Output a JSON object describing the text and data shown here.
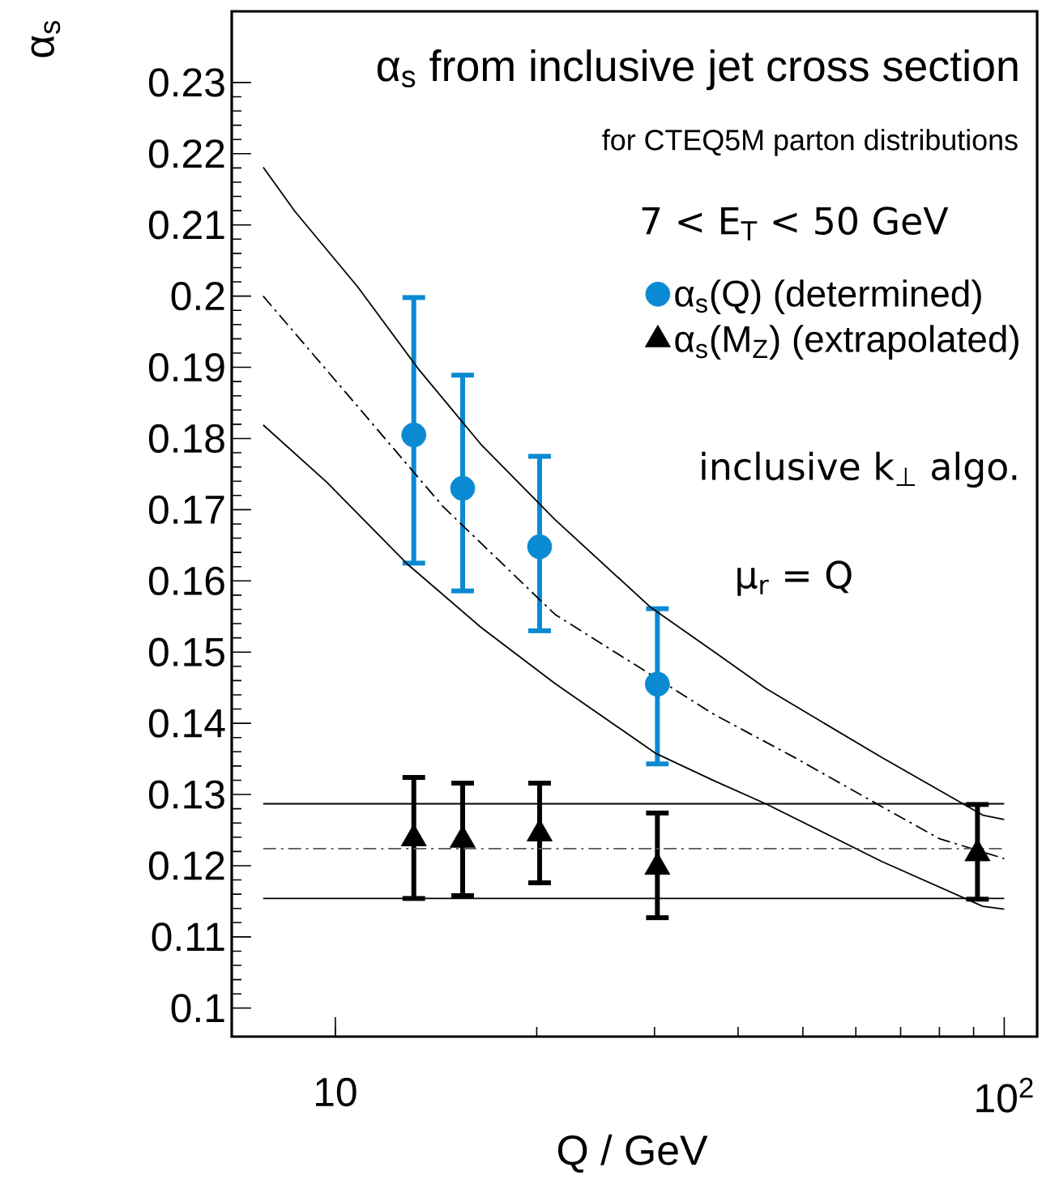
{
  "chart_data": {
    "type": "scatter",
    "title": "α$_{s}$ from inclusive jet cross section",
    "subtitle": "for CTEQ5M parton distributions",
    "xlabel": "Q  / GeV",
    "ylabel": "α$_{s}$",
    "annotations": [
      "7 < E$_{T}$ < 50 GeV",
      "inclusive k$_{⊥}$ algo.",
      "μ$_{r}$ = Q"
    ],
    "log": "x",
    "xlim": [
      7,
      112
    ],
    "ylim": [
      0.096,
      0.24
    ],
    "xticks": [
      {
        "value": 10,
        "label": "10"
      },
      {
        "value": 100,
        "label": "10$^{2}$"
      }
    ],
    "yticks": [
      0.1,
      0.11,
      0.12,
      0.13,
      0.14,
      0.15,
      0.16,
      0.17,
      0.18,
      0.19,
      0.2,
      0.21,
      0.22,
      0.23
    ],
    "legend": "top right",
    "series": [
      {
        "name": "α$_{s}$(Q)   (determined)",
        "color": "#0a8ad2",
        "marker": "circle",
        "x": [
          13.1,
          15.5,
          20.2,
          30.3
        ],
        "values": [
          0.1805,
          0.173,
          0.1648,
          0.1455
        ],
        "errors": [
          [
            0.1625,
            0.1998
          ],
          [
            0.1586,
            0.1889
          ],
          [
            0.153,
            0.1775
          ],
          [
            0.1343,
            0.1561
          ]
        ]
      },
      {
        "name": "α$_{s}$(M$_{Z}$)   (extrapolated)",
        "color": "#000000",
        "marker": "triangle",
        "x": [
          13.1,
          15.5,
          20.2,
          30.3,
          91.2
        ],
        "values": [
          0.1238,
          0.1236,
          0.1245,
          0.1198,
          0.1217
        ],
        "errors": [
          [
            0.1154,
            0.1324
          ],
          [
            0.1158,
            0.1316
          ],
          [
            0.1176,
            0.1316
          ],
          [
            0.1127,
            0.1274
          ],
          [
            0.1153,
            0.1286
          ]
        ]
      },
      {
        "type": "line",
        "color": "#000000",
        "marker": "none",
        "line_style": "solid",
        "x": [
          7.8,
          8.7,
          10.8,
          13.3,
          16.5,
          21.3,
          29.6,
          36.9,
          44,
          65.6,
          92.9,
          100
        ],
        "values": [
          0.2181,
          0.2119,
          0.2013,
          0.1898,
          0.1792,
          0.1686,
          0.1563,
          0.15,
          0.1449,
          0.1352,
          0.1271,
          0.1265
        ]
      },
      {
        "type": "line",
        "color": "#000000",
        "marker": "none",
        "line_style": "dashed",
        "x": [
          7.8,
          10.8,
          14.5,
          21.3,
          36.9,
          48.6,
          65.6,
          80,
          100
        ],
        "values": [
          0.2,
          0.1845,
          0.1704,
          0.1553,
          0.1412,
          0.1352,
          0.1283,
          0.1238,
          0.121
        ]
      },
      {
        "type": "line",
        "color": "#000000",
        "marker": "none",
        "line_style": "solid",
        "x": [
          7.8,
          9.7,
          12.8,
          16.5,
          21.3,
          30.1,
          36.9,
          44,
          65.6,
          92.9,
          100
        ],
        "values": [
          0.1819,
          0.1739,
          0.1624,
          0.1535,
          0.1456,
          0.1358,
          0.1319,
          0.1287,
          0.1206,
          0.1143,
          0.1139
        ]
      },
      {
        "type": "line",
        "color": "#000000",
        "marker": "none",
        "line_style": "solid",
        "x": [
          7.8,
          100
        ],
        "values": [
          0.1287,
          0.1287
        ]
      },
      {
        "type": "line",
        "color": "#555555",
        "marker": "none",
        "line_style": "dashed",
        "x": [
          7.8,
          100
        ],
        "values": [
          0.1224,
          0.1224
        ]
      },
      {
        "type": "line",
        "color": "#000000",
        "marker": "none",
        "line_style": "solid",
        "x": [
          7.8,
          100
        ],
        "values": [
          0.1154,
          0.1154
        ]
      }
    ]
  }
}
